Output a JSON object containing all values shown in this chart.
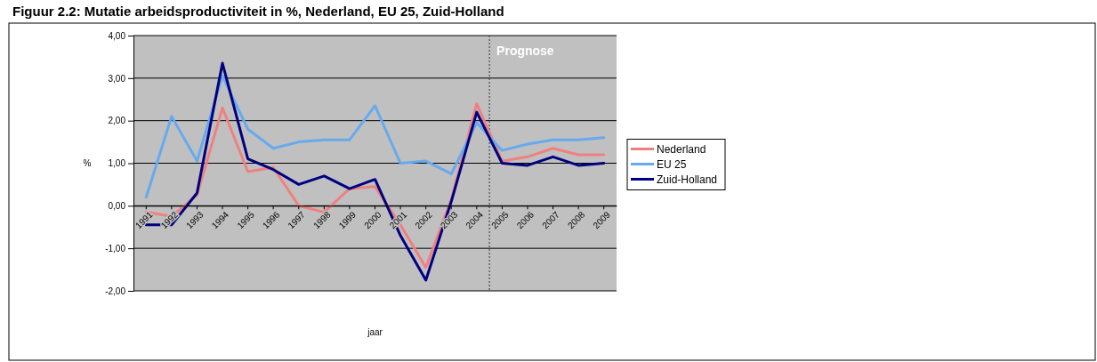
{
  "chart_data": {
    "type": "line",
    "title": "Figuur 2.2: Mutatie arbeidsproductiviteit in %, Nederland, EU 25, Zuid-Holland",
    "xlabel": "jaar",
    "ylabel": "%",
    "categories": [
      "1991",
      "1992",
      "1993",
      "1994",
      "1995",
      "1996",
      "1997",
      "1998",
      "1999",
      "2000",
      "2001",
      "2002",
      "2003",
      "2004",
      "2005",
      "2006",
      "2007",
      "2008",
      "2009"
    ],
    "series": [
      {
        "name": "Nederland",
        "color": "#f08080",
        "values": [
          -0.15,
          -0.25,
          0.25,
          2.3,
          0.8,
          0.9,
          0.0,
          -0.15,
          0.4,
          0.45,
          -0.45,
          -1.45,
          0.15,
          2.4,
          1.05,
          1.15,
          1.35,
          1.2,
          1.2
        ]
      },
      {
        "name": "EU 25",
        "color": "#66aaee",
        "values": [
          0.2,
          2.1,
          1.05,
          3.05,
          1.8,
          1.35,
          1.5,
          1.55,
          1.55,
          2.35,
          1.0,
          1.05,
          0.75,
          1.95,
          1.3,
          1.45,
          1.55,
          1.55,
          1.6
        ]
      },
      {
        "name": "Zuid-Holland",
        "color": "#000080",
        "values": [
          -0.45,
          -0.45,
          0.3,
          3.35,
          1.1,
          0.85,
          0.5,
          0.7,
          0.4,
          0.62,
          -0.7,
          -1.75,
          0.1,
          2.2,
          1.0,
          0.95,
          1.15,
          0.95,
          1.0
        ]
      }
    ],
    "ylim": [
      -2,
      4
    ],
    "yticks": [
      {
        "value": -2,
        "label": "-2,00"
      },
      {
        "value": -1,
        "label": "-1,00"
      },
      {
        "value": 0,
        "label": "0,00"
      },
      {
        "value": 1,
        "label": "1,00"
      },
      {
        "value": 2,
        "label": "2,00"
      },
      {
        "value": 3,
        "label": "3,00"
      },
      {
        "value": 4,
        "label": "4,00"
      }
    ],
    "grid": "y",
    "legend": "right",
    "line_style": "solid",
    "marker": "none",
    "ref_lines": [
      {
        "axis": "x",
        "value": "2005",
        "label": "Prognose",
        "color": "#333333",
        "line_style": "dotted"
      }
    ]
  }
}
